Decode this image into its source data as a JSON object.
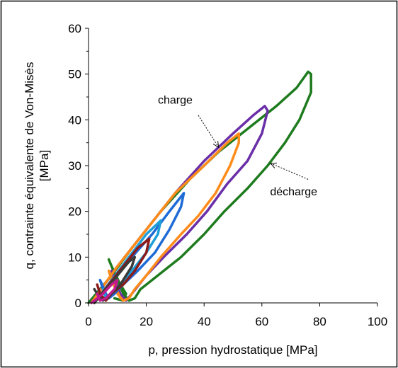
{
  "chart_data": {
    "type": "line",
    "title": "",
    "xlabel": "p, pression hydrostatique [MPa]",
    "ylabel": "q, contrainte équivalente de Von-Misès [MPa]",
    "ylabel_lines": [
      "q, contrainte équivalente de Von-Misès",
      "[MPa]"
    ],
    "xlim": [
      0,
      100
    ],
    "ylim": [
      0,
      60
    ],
    "x_ticks": [
      0,
      20,
      40,
      60,
      80,
      100
    ],
    "y_ticks": [
      0,
      10,
      20,
      30,
      40,
      50,
      60
    ],
    "x_tick_labels": [
      "0",
      "20",
      "40",
      "60",
      "80",
      "100"
    ],
    "y_tick_labels": [
      "0",
      "10",
      "20",
      "30",
      "40",
      "50",
      "60"
    ],
    "grid": false,
    "legend": "none",
    "annotations": [
      {
        "text": "charge",
        "x": 30,
        "y": 43.5,
        "arrow_from": [
          38,
          41
        ],
        "arrow_to": [
          45,
          34
        ]
      },
      {
        "text": "décharge",
        "x": 71,
        "y": 23.5,
        "arrow_from": [
          76,
          27
        ],
        "arrow_to": [
          63,
          30.5
        ]
      }
    ],
    "series": [
      {
        "color": "#1e7b1e",
        "points": [
          [
            0,
            0
          ],
          [
            8,
            6
          ],
          [
            15,
            12
          ],
          [
            25,
            20
          ],
          [
            35,
            27
          ],
          [
            45,
            33
          ],
          [
            55,
            38
          ],
          [
            65,
            43
          ],
          [
            72,
            47
          ],
          [
            76,
            50.5
          ],
          [
            77,
            50
          ],
          [
            77,
            46
          ],
          [
            73,
            40
          ],
          [
            68,
            35
          ],
          [
            62,
            30
          ],
          [
            55,
            25
          ],
          [
            47,
            20
          ],
          [
            40,
            15
          ],
          [
            32,
            10
          ],
          [
            24,
            6
          ],
          [
            18,
            3
          ],
          [
            16,
            1
          ],
          [
            14,
            0.5
          ],
          [
            12,
            2
          ],
          [
            10,
            5
          ],
          [
            8,
            8
          ],
          [
            7,
            9.5
          ],
          [
            8,
            8
          ],
          [
            11,
            4
          ],
          [
            13,
            2
          ],
          [
            12,
            0.5
          ],
          [
            9,
            1
          ]
        ]
      },
      {
        "color": "#6a2fa8",
        "points": [
          [
            1,
            0
          ],
          [
            10,
            8
          ],
          [
            20,
            16
          ],
          [
            30,
            24
          ],
          [
            40,
            31
          ],
          [
            50,
            37
          ],
          [
            57,
            41
          ],
          [
            61,
            43
          ],
          [
            62,
            42
          ],
          [
            60,
            37
          ],
          [
            55,
            31
          ],
          [
            48,
            26
          ],
          [
            41,
            20
          ],
          [
            34,
            15
          ],
          [
            26,
            10
          ],
          [
            20,
            6
          ],
          [
            15,
            2
          ],
          [
            13,
            0.5
          ],
          [
            11,
            2
          ],
          [
            9,
            5
          ],
          [
            8,
            7
          ],
          [
            10,
            3
          ],
          [
            12,
            0.5
          ]
        ]
      },
      {
        "color": "#ff8c1a",
        "points": [
          [
            1,
            0
          ],
          [
            10,
            8
          ],
          [
            20,
            16
          ],
          [
            30,
            24
          ],
          [
            40,
            30
          ],
          [
            48,
            35
          ],
          [
            52,
            37
          ],
          [
            52,
            35
          ],
          [
            49,
            30
          ],
          [
            44,
            24
          ],
          [
            38,
            19
          ],
          [
            32,
            15
          ],
          [
            25,
            10
          ],
          [
            20,
            6
          ],
          [
            16,
            3
          ],
          [
            14,
            1
          ],
          [
            12,
            0.5
          ],
          [
            10,
            2
          ],
          [
            8,
            5
          ],
          [
            7,
            7
          ],
          [
            9,
            4
          ],
          [
            11,
            1
          ]
        ]
      },
      {
        "color": "#1e6bd6",
        "points": [
          [
            2,
            0
          ],
          [
            8,
            5
          ],
          [
            15,
            10
          ],
          [
            22,
            15
          ],
          [
            28,
            20
          ],
          [
            33,
            24
          ],
          [
            32,
            21
          ],
          [
            28,
            16
          ],
          [
            23,
            11
          ],
          [
            17,
            7
          ],
          [
            12,
            4
          ],
          [
            9,
            2
          ],
          [
            7,
            1
          ],
          [
            5,
            3
          ],
          [
            4,
            5
          ],
          [
            6,
            2
          ]
        ]
      },
      {
        "color": "#1e9ed6",
        "points": [
          [
            2,
            0
          ],
          [
            8,
            5
          ],
          [
            14,
            10
          ],
          [
            20,
            15
          ],
          [
            25,
            18
          ],
          [
            24,
            15
          ],
          [
            20,
            11
          ],
          [
            15,
            7
          ],
          [
            11,
            4
          ],
          [
            8,
            2
          ],
          [
            6,
            1
          ],
          [
            5,
            3
          ]
        ]
      },
      {
        "color": "#8b1a1a",
        "points": [
          [
            2,
            0
          ],
          [
            7,
            4
          ],
          [
            12,
            8
          ],
          [
            17,
            12
          ],
          [
            21,
            14
          ],
          [
            20,
            11
          ],
          [
            16,
            7
          ],
          [
            12,
            4
          ],
          [
            8,
            2
          ],
          [
            6,
            0.5
          ],
          [
            4,
            2
          ],
          [
            3,
            4
          ]
        ]
      },
      {
        "color": "#3a3a3a",
        "points": [
          [
            2,
            0
          ],
          [
            6,
            3
          ],
          [
            10,
            6
          ],
          [
            14,
            9
          ],
          [
            16,
            10
          ],
          [
            15,
            8
          ],
          [
            11,
            4
          ],
          [
            8,
            2
          ],
          [
            5,
            0.5
          ],
          [
            3,
            2
          ],
          [
            2,
            3
          ]
        ]
      },
      {
        "color": "#c21a8c",
        "points": [
          [
            1,
            0
          ],
          [
            5,
            2
          ],
          [
            8,
            4
          ],
          [
            10,
            5
          ],
          [
            9,
            3
          ],
          [
            6,
            1
          ],
          [
            4,
            0.5
          ],
          [
            3,
            2
          ]
        ]
      }
    ]
  }
}
